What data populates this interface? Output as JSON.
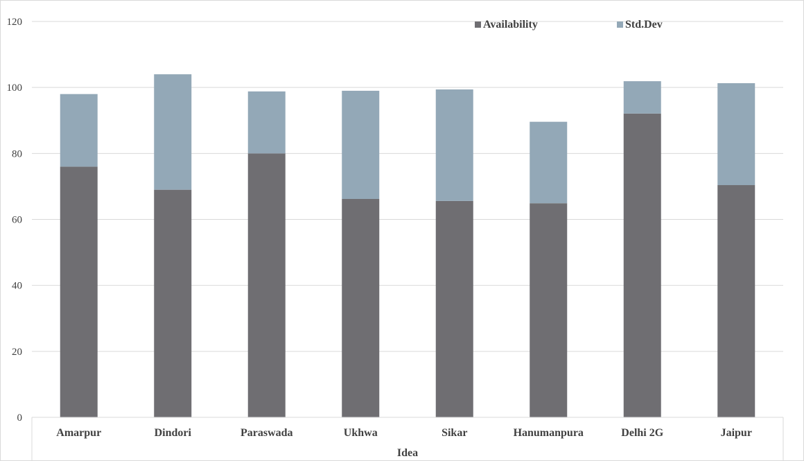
{
  "chart_data": {
    "type": "bar",
    "stacked": true,
    "title": "",
    "xlabel": "Idea",
    "ylabel": "",
    "ylim": [
      0,
      120
    ],
    "yticks": [
      0,
      20,
      40,
      60,
      80,
      100,
      120
    ],
    "grid": true,
    "legend_position": "top-right",
    "categories": [
      "Amarpur",
      "Dindori",
      "Paraswada",
      "Ukhwa",
      "Sikar",
      "Hanumanpura",
      "Delhi 2G",
      "Jaipur"
    ],
    "series": [
      {
        "name": "Availability",
        "color": "#6f6e72",
        "values": [
          76,
          69,
          80,
          66.2,
          65.6,
          64.9,
          92.1,
          70.4
        ]
      },
      {
        "name": "Std.Dev",
        "color": "#93a8b7",
        "values": [
          22,
          35,
          18.8,
          32.8,
          33.8,
          24.7,
          9.8,
          30.9
        ]
      }
    ]
  }
}
